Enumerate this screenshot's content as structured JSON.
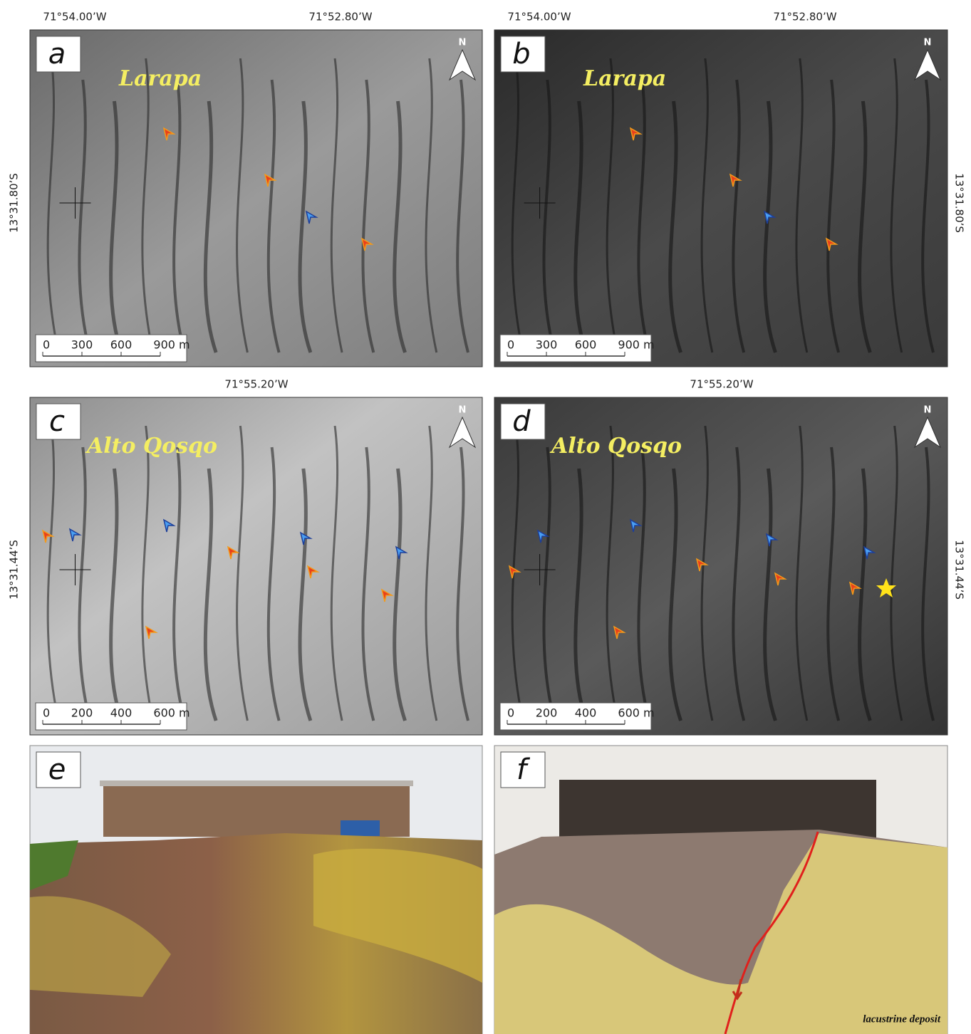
{
  "panels": [
    {
      "letter": "a",
      "place": "Larapa",
      "north": "N",
      "scale_labels": [
        "0",
        "300",
        "600",
        "900 m"
      ],
      "longitudes": [
        "71°54.00’W",
        "71°52.80’W"
      ],
      "latitude": "13°31.80’S"
    },
    {
      "letter": "b",
      "place": "Larapa",
      "north": "N",
      "scale_labels": [
        "0",
        "300",
        "600",
        "900 m"
      ],
      "longitudes": [
        "71°54.00’W",
        "71°52.80’W"
      ],
      "latitude": "13°31.80’S"
    },
    {
      "letter": "c",
      "place": "Alto Qosqo",
      "north": "N",
      "scale_labels": [
        "0",
        "200",
        "400",
        "600 m"
      ],
      "longitudes": [
        "71°55.20’W"
      ],
      "latitude": "13°31.44’S"
    },
    {
      "letter": "d",
      "place": "Alto Qosqo",
      "north": "N",
      "scale_labels": [
        "0",
        "200",
        "400",
        "600 m"
      ],
      "longitudes": [
        "71°55.20’W"
      ],
      "latitude": "13°31.44’S"
    },
    {
      "letter": "e"
    },
    {
      "letter": "f",
      "annotation": "lacustrine deposit"
    }
  ]
}
